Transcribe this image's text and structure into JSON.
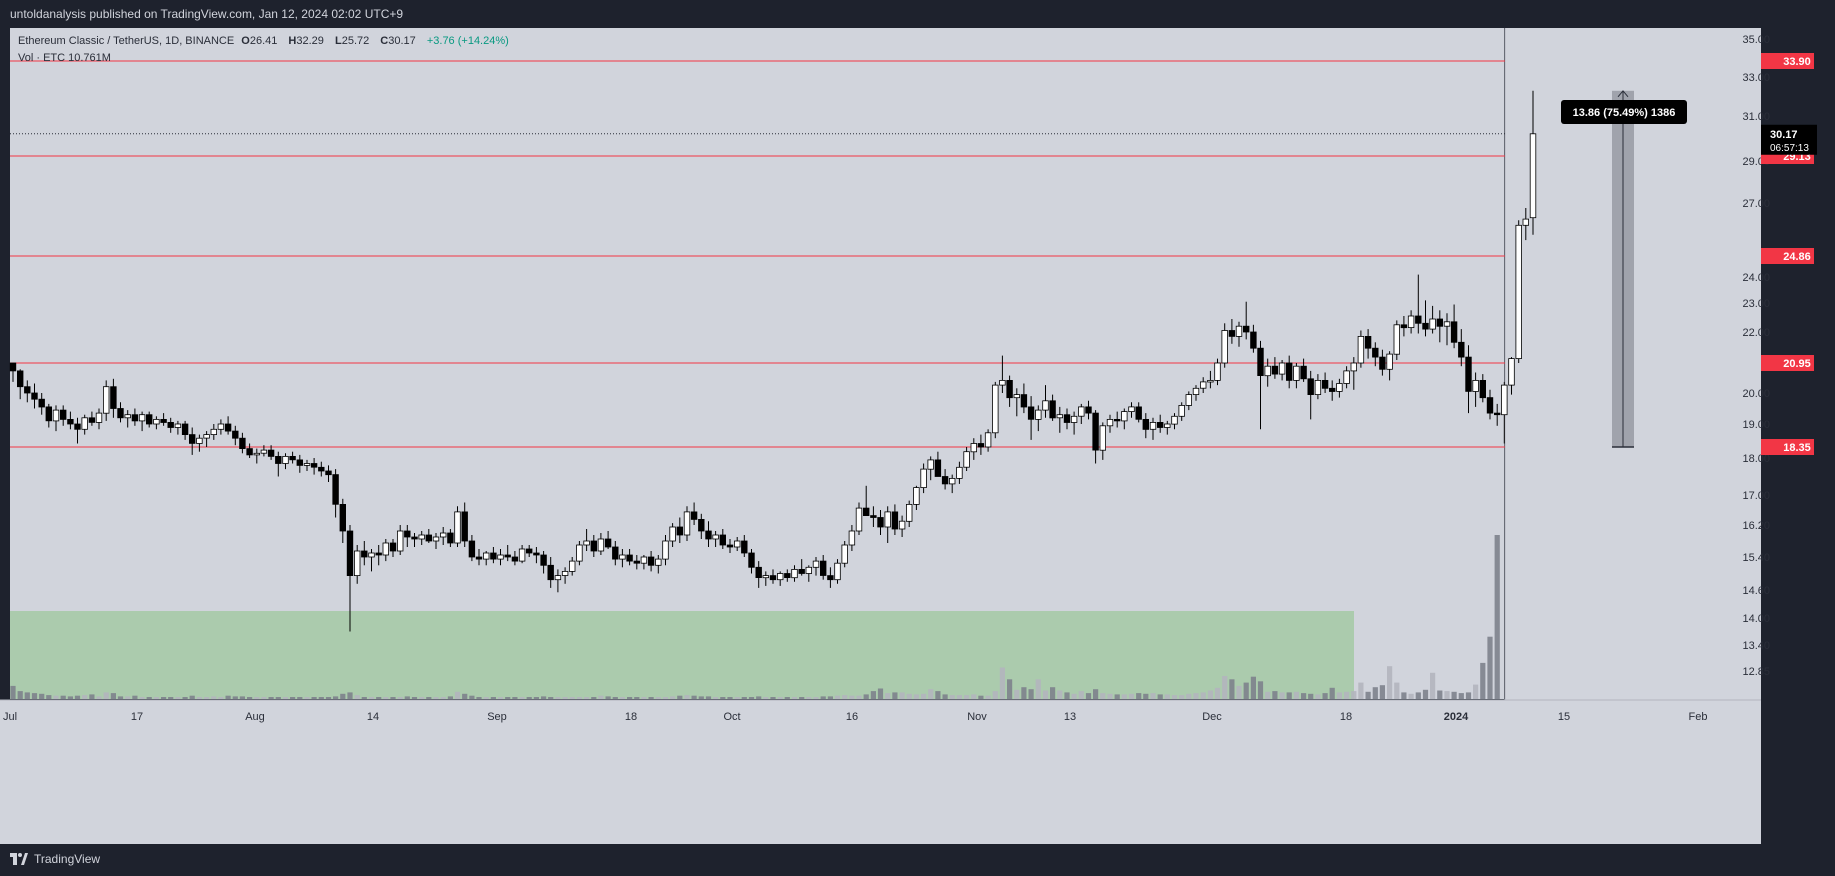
{
  "header": {
    "published": "untoldanalysis published on TradingView.com, Jan 12, 2024 02:02 UTC+9"
  },
  "legend": {
    "symbol": "Ethereum Classic / TetherUS, 1D, BINANCE",
    "open_label": "O",
    "open": "26.41",
    "high_label": "H",
    "high": "32.29",
    "low_label": "L",
    "low": "25.72",
    "close_label": "C",
    "close": "30.17",
    "change": "+3.76 (+14.24%)",
    "volume": "Vol · ETC  10.761M"
  },
  "footer": {
    "brand": "TradingView"
  },
  "colors": {
    "background": "#d1d4dc",
    "frame": "#1e222d",
    "level_line": "#f23645",
    "candle_up": "#ffffff",
    "candle_down": "#000000",
    "volume_zone": "#a5c9a5",
    "measure_box": "#8f939c"
  },
  "chart_data": {
    "type": "candlestick",
    "timeframe": "1D",
    "x_ticks": [
      "Jul",
      "17",
      "Aug",
      "14",
      "Sep",
      "18",
      "Oct",
      "16",
      "Nov",
      "13",
      "Dec",
      "18",
      "2024",
      "15",
      "Feb"
    ],
    "y_ticks": [
      "35.00",
      "33.00",
      "31.00",
      "29.00",
      "27.00",
      "24.00",
      "23.00",
      "22.00",
      "20.00",
      "19.00",
      "18.00",
      "17.00",
      "16.20",
      "15.40",
      "14.60",
      "14.00",
      "13.40",
      "12.85"
    ],
    "horizontal_levels": [
      "33.90",
      "29.13",
      "24.86",
      "20.95",
      "18.35"
    ],
    "last_price": "30.17",
    "countdown": "06:57:13",
    "measurement_label": "13.86 (75.49%) 1386",
    "price_range": [
      12.4,
      35.6
    ],
    "candles": [
      [
        20.95,
        20.95,
        20.35,
        20.7
      ],
      [
        20.7,
        20.75,
        19.8,
        20.2
      ],
      [
        20.2,
        20.4,
        19.7,
        20.0
      ],
      [
        20.0,
        20.3,
        19.5,
        19.8
      ],
      [
        19.8,
        20.0,
        19.3,
        19.55
      ],
      [
        19.55,
        19.65,
        18.9,
        19.1
      ],
      [
        19.1,
        19.6,
        18.8,
        19.45
      ],
      [
        19.45,
        19.6,
        18.95,
        19.15
      ],
      [
        19.15,
        19.4,
        18.85,
        19.0
      ],
      [
        19.0,
        19.2,
        18.45,
        18.85
      ],
      [
        18.85,
        19.3,
        18.7,
        19.2
      ],
      [
        19.2,
        19.4,
        18.95,
        19.05
      ],
      [
        19.05,
        19.5,
        18.85,
        19.35
      ],
      [
        19.35,
        20.4,
        19.1,
        20.2
      ],
      [
        20.2,
        20.45,
        19.2,
        19.5
      ],
      [
        19.5,
        19.7,
        19.05,
        19.2
      ],
      [
        19.2,
        19.45,
        18.9,
        19.3
      ],
      [
        19.3,
        19.5,
        18.95,
        19.1
      ],
      [
        19.1,
        19.4,
        18.8,
        19.3
      ],
      [
        19.3,
        19.4,
        18.9,
        19.0
      ],
      [
        19.0,
        19.25,
        18.85,
        19.15
      ],
      [
        19.15,
        19.35,
        18.95,
        19.05
      ],
      [
        19.05,
        19.2,
        18.75,
        18.9
      ],
      [
        18.9,
        19.1,
        18.7,
        19.0
      ],
      [
        19.0,
        19.1,
        18.55,
        18.7
      ],
      [
        18.7,
        18.9,
        18.1,
        18.45
      ],
      [
        18.45,
        18.7,
        18.2,
        18.6
      ],
      [
        18.6,
        18.8,
        18.35,
        18.7
      ],
      [
        18.7,
        19.0,
        18.55,
        18.85
      ],
      [
        18.85,
        19.15,
        18.7,
        19.0
      ],
      [
        19.0,
        19.25,
        18.7,
        18.8
      ],
      [
        18.8,
        18.95,
        18.4,
        18.6
      ],
      [
        18.6,
        18.75,
        18.15,
        18.3
      ],
      [
        18.3,
        18.45,
        18.0,
        18.1
      ],
      [
        18.1,
        18.3,
        17.85,
        18.15
      ],
      [
        18.15,
        18.4,
        18.05,
        18.25
      ],
      [
        18.25,
        18.4,
        17.95,
        18.05
      ],
      [
        18.05,
        18.2,
        17.5,
        17.85
      ],
      [
        17.85,
        18.15,
        17.7,
        18.05
      ],
      [
        18.05,
        18.2,
        17.85,
        17.95
      ],
      [
        17.95,
        18.1,
        17.6,
        17.8
      ],
      [
        17.8,
        17.95,
        17.65,
        17.85
      ],
      [
        17.85,
        18.0,
        17.55,
        17.75
      ],
      [
        17.75,
        17.9,
        17.5,
        17.65
      ],
      [
        17.65,
        17.8,
        17.35,
        17.55
      ],
      [
        17.55,
        17.7,
        16.4,
        16.75
      ],
      [
        16.75,
        16.9,
        15.75,
        16.05
      ],
      [
        16.05,
        16.2,
        13.7,
        14.95
      ],
      [
        14.95,
        15.7,
        14.75,
        15.55
      ],
      [
        15.55,
        15.8,
        15.2,
        15.4
      ],
      [
        15.4,
        15.6,
        15.05,
        15.5
      ],
      [
        15.5,
        15.7,
        15.2,
        15.45
      ],
      [
        15.45,
        15.85,
        15.3,
        15.75
      ],
      [
        15.75,
        15.85,
        15.4,
        15.55
      ],
      [
        15.55,
        16.2,
        15.45,
        16.05
      ],
      [
        16.05,
        16.2,
        15.65,
        15.9
      ],
      [
        15.9,
        16.0,
        15.65,
        15.85
      ],
      [
        15.85,
        16.05,
        15.7,
        15.95
      ],
      [
        15.95,
        16.1,
        15.75,
        15.8
      ],
      [
        15.8,
        16.0,
        15.6,
        15.9
      ],
      [
        15.9,
        16.15,
        15.7,
        16.0
      ],
      [
        16.0,
        16.1,
        15.65,
        15.75
      ],
      [
        15.75,
        16.7,
        15.65,
        16.55
      ],
      [
        16.55,
        16.8,
        15.65,
        15.8
      ],
      [
        15.8,
        15.95,
        15.3,
        15.4
      ],
      [
        15.4,
        15.6,
        15.2,
        15.35
      ],
      [
        15.35,
        15.55,
        15.2,
        15.5
      ],
      [
        15.5,
        15.65,
        15.25,
        15.35
      ],
      [
        15.35,
        15.6,
        15.2,
        15.45
      ],
      [
        15.45,
        15.7,
        15.3,
        15.4
      ],
      [
        15.4,
        15.55,
        15.2,
        15.3
      ],
      [
        15.3,
        15.7,
        15.25,
        15.6
      ],
      [
        15.6,
        15.7,
        15.4,
        15.5
      ],
      [
        15.5,
        15.65,
        15.25,
        15.45
      ],
      [
        15.45,
        15.55,
        15.0,
        15.2
      ],
      [
        15.2,
        15.4,
        14.65,
        14.85
      ],
      [
        14.85,
        15.1,
        14.55,
        14.95
      ],
      [
        14.95,
        15.15,
        14.75,
        15.05
      ],
      [
        15.05,
        15.4,
        14.95,
        15.3
      ],
      [
        15.3,
        15.8,
        15.2,
        15.7
      ],
      [
        15.7,
        16.1,
        15.55,
        15.8
      ],
      [
        15.8,
        15.95,
        15.4,
        15.55
      ],
      [
        15.55,
        16.0,
        15.45,
        15.85
      ],
      [
        15.85,
        16.05,
        15.6,
        15.65
      ],
      [
        15.65,
        15.8,
        15.2,
        15.35
      ],
      [
        15.35,
        15.6,
        15.15,
        15.45
      ],
      [
        15.45,
        15.6,
        15.2,
        15.3
      ],
      [
        15.3,
        15.45,
        15.1,
        15.25
      ],
      [
        15.25,
        15.45,
        15.1,
        15.4
      ],
      [
        15.4,
        15.55,
        15.05,
        15.2
      ],
      [
        15.2,
        15.45,
        15.0,
        15.35
      ],
      [
        15.35,
        15.95,
        15.2,
        15.8
      ],
      [
        15.8,
        16.25,
        15.65,
        16.15
      ],
      [
        16.15,
        16.4,
        15.75,
        15.95
      ],
      [
        15.95,
        16.7,
        15.8,
        16.55
      ],
      [
        16.55,
        16.8,
        16.2,
        16.35
      ],
      [
        16.35,
        16.5,
        15.85,
        16.05
      ],
      [
        16.05,
        16.3,
        15.65,
        15.85
      ],
      [
        15.85,
        16.05,
        15.65,
        15.95
      ],
      [
        15.95,
        16.1,
        15.6,
        15.7
      ],
      [
        15.7,
        15.85,
        15.5,
        15.65
      ],
      [
        15.65,
        15.9,
        15.55,
        15.8
      ],
      [
        15.8,
        15.95,
        15.4,
        15.5
      ],
      [
        15.5,
        15.6,
        15.0,
        15.15
      ],
      [
        15.15,
        15.3,
        14.65,
        14.9
      ],
      [
        14.9,
        15.05,
        14.7,
        14.95
      ],
      [
        14.95,
        15.1,
        14.75,
        14.85
      ],
      [
        14.85,
        15.05,
        14.7,
        15.0
      ],
      [
        15.0,
        15.1,
        14.8,
        14.9
      ],
      [
        14.9,
        15.2,
        14.8,
        15.1
      ],
      [
        15.1,
        15.35,
        14.95,
        15.0
      ],
      [
        15.0,
        15.2,
        14.8,
        15.15
      ],
      [
        15.15,
        15.4,
        14.95,
        15.3
      ],
      [
        15.3,
        15.45,
        14.85,
        14.95
      ],
      [
        14.95,
        15.15,
        14.65,
        14.85
      ],
      [
        14.85,
        15.35,
        14.75,
        15.25
      ],
      [
        15.25,
        15.8,
        15.15,
        15.7
      ],
      [
        15.7,
        16.2,
        15.55,
        16.05
      ],
      [
        16.05,
        16.8,
        15.95,
        16.65
      ],
      [
        16.65,
        17.25,
        16.45,
        16.45
      ],
      [
        16.45,
        16.7,
        16.15,
        16.4
      ],
      [
        16.4,
        16.6,
        15.95,
        16.15
      ],
      [
        16.15,
        16.7,
        15.75,
        16.55
      ],
      [
        16.55,
        16.75,
        15.95,
        16.1
      ],
      [
        16.1,
        16.45,
        15.9,
        16.3
      ],
      [
        16.3,
        16.85,
        16.15,
        16.75
      ],
      [
        16.75,
        17.25,
        16.6,
        17.2
      ],
      [
        17.2,
        17.85,
        17.05,
        17.7
      ],
      [
        17.7,
        18.05,
        17.4,
        17.95
      ],
      [
        17.95,
        18.2,
        17.6,
        17.5
      ],
      [
        17.5,
        17.7,
        17.15,
        17.3
      ],
      [
        17.3,
        17.55,
        17.05,
        17.45
      ],
      [
        17.45,
        17.9,
        17.3,
        17.75
      ],
      [
        17.75,
        18.35,
        17.65,
        18.2
      ],
      [
        18.2,
        18.6,
        17.95,
        18.45
      ],
      [
        18.45,
        18.7,
        18.1,
        18.35
      ],
      [
        18.35,
        18.85,
        18.2,
        18.75
      ],
      [
        18.75,
        20.35,
        18.6,
        20.25
      ],
      [
        20.25,
        21.2,
        20.0,
        20.4
      ],
      [
        20.4,
        20.55,
        19.55,
        19.85
      ],
      [
        19.85,
        20.15,
        19.25,
        19.95
      ],
      [
        19.95,
        20.3,
        19.35,
        19.55
      ],
      [
        19.55,
        19.9,
        18.55,
        19.15
      ],
      [
        19.15,
        19.6,
        18.8,
        19.45
      ],
      [
        19.45,
        20.25,
        19.2,
        19.75
      ],
      [
        19.75,
        19.95,
        19.1,
        19.2
      ],
      [
        19.2,
        19.55,
        18.75,
        19.3
      ],
      [
        19.3,
        19.5,
        18.85,
        19.05
      ],
      [
        19.05,
        19.4,
        18.7,
        19.25
      ],
      [
        19.25,
        19.65,
        19.0,
        19.55
      ],
      [
        19.55,
        19.75,
        19.15,
        19.35
      ],
      [
        19.35,
        19.45,
        17.85,
        18.25
      ],
      [
        18.25,
        19.05,
        17.95,
        18.95
      ],
      [
        18.95,
        19.3,
        18.75,
        19.15
      ],
      [
        19.15,
        19.4,
        18.9,
        19.1
      ],
      [
        19.1,
        19.5,
        18.85,
        19.4
      ],
      [
        19.4,
        19.7,
        19.2,
        19.55
      ],
      [
        19.55,
        19.7,
        19.05,
        19.15
      ],
      [
        19.15,
        19.35,
        18.6,
        18.85
      ],
      [
        18.85,
        19.2,
        18.55,
        19.05
      ],
      [
        19.05,
        19.3,
        18.75,
        18.9
      ],
      [
        18.9,
        19.1,
        18.7,
        19.0
      ],
      [
        19.0,
        19.35,
        18.85,
        19.25
      ],
      [
        19.25,
        19.7,
        19.1,
        19.6
      ],
      [
        19.6,
        20.05,
        19.45,
        19.95
      ],
      [
        19.95,
        20.25,
        19.75,
        20.15
      ],
      [
        20.15,
        20.5,
        20.0,
        20.35
      ],
      [
        20.35,
        20.7,
        20.15,
        20.4
      ],
      [
        20.4,
        21.1,
        20.25,
        20.95
      ],
      [
        20.95,
        22.3,
        20.8,
        22.05
      ],
      [
        22.05,
        22.45,
        21.6,
        21.85
      ],
      [
        21.85,
        22.35,
        21.5,
        22.2
      ],
      [
        22.2,
        23.05,
        21.75,
        22.0
      ],
      [
        22.0,
        22.25,
        21.3,
        21.45
      ],
      [
        21.45,
        21.7,
        18.85,
        20.55
      ],
      [
        20.55,
        21.1,
        20.2,
        20.85
      ],
      [
        20.85,
        21.15,
        20.45,
        20.6
      ],
      [
        20.6,
        21.05,
        20.4,
        20.95
      ],
      [
        20.95,
        21.2,
        20.15,
        20.4
      ],
      [
        20.4,
        20.95,
        20.15,
        20.85
      ],
      [
        20.85,
        21.1,
        20.35,
        20.45
      ],
      [
        20.45,
        20.7,
        19.15,
        19.95
      ],
      [
        19.95,
        20.6,
        19.8,
        20.4
      ],
      [
        20.4,
        20.65,
        20.0,
        20.15
      ],
      [
        20.15,
        20.4,
        19.75,
        20.05
      ],
      [
        20.05,
        20.45,
        19.85,
        20.3
      ],
      [
        20.3,
        20.85,
        20.15,
        20.7
      ],
      [
        20.7,
        21.15,
        20.1,
        20.95
      ],
      [
        20.95,
        22.05,
        20.8,
        21.85
      ],
      [
        21.85,
        22.1,
        21.1,
        21.45
      ],
      [
        21.45,
        21.65,
        20.85,
        21.15
      ],
      [
        21.15,
        21.4,
        20.55,
        20.75
      ],
      [
        20.75,
        21.35,
        20.4,
        21.25
      ],
      [
        21.25,
        22.4,
        21.05,
        22.25
      ],
      [
        22.25,
        22.55,
        21.85,
        22.15
      ],
      [
        22.15,
        22.75,
        21.95,
        22.55
      ],
      [
        22.55,
        24.1,
        21.95,
        22.3
      ],
      [
        22.3,
        23.1,
        21.85,
        22.1
      ],
      [
        22.1,
        22.9,
        21.95,
        22.45
      ],
      [
        22.45,
        22.75,
        21.65,
        22.2
      ],
      [
        22.2,
        22.65,
        21.55,
        22.35
      ],
      [
        22.35,
        22.95,
        21.45,
        21.65
      ],
      [
        21.65,
        22.1,
        20.85,
        21.15
      ],
      [
        21.15,
        21.55,
        19.35,
        20.05
      ],
      [
        20.05,
        20.65,
        19.55,
        20.4
      ],
      [
        20.4,
        20.6,
        19.7,
        19.85
      ],
      [
        19.85,
        20.1,
        19.15,
        19.35
      ],
      [
        19.35,
        19.65,
        18.95,
        19.3
      ],
      [
        19.3,
        20.35,
        18.45,
        20.25
      ],
      [
        20.25,
        21.15,
        19.95,
        21.1
      ],
      [
        21.1,
        26.3,
        20.95,
        26.1
      ],
      [
        26.1,
        26.8,
        25.5,
        26.35
      ],
      [
        26.41,
        32.29,
        25.72,
        30.17
      ]
    ],
    "volumes": [
      2.0,
      1.2,
      1.0,
      0.9,
      0.8,
      0.6,
      0.5,
      0.5,
      0.4,
      0.5,
      0.6,
      0.7,
      0.4,
      1.0,
      0.9,
      0.4,
      0.4,
      0.5,
      0.3,
      0.3,
      0.3,
      0.3,
      0.3,
      0.3,
      0.3,
      0.5,
      0.3,
      0.3,
      0.4,
      0.3,
      0.5,
      0.4,
      0.4,
      0.3,
      0.3,
      0.2,
      0.2,
      0.3,
      0.3,
      0.2,
      0.3,
      0.3,
      0.3,
      0.2,
      0.3,
      0.4,
      0.8,
      1.0,
      0.6,
      0.3,
      0.3,
      0.2,
      0.2,
      0.2,
      0.3,
      0.4,
      0.3,
      0.3,
      0.2,
      0.2,
      0.2,
      0.4,
      1.1,
      0.8,
      0.5,
      0.3,
      0.3,
      0.2,
      0.3,
      0.2,
      0.2,
      0.2,
      0.2,
      0.3,
      0.4,
      0.3,
      0.2,
      0.3,
      0.2,
      0.2,
      0.3,
      0.3,
      0.5,
      0.4,
      0.3,
      0.3,
      0.2,
      0.2,
      0.2,
      0.2,
      0.2,
      0.3,
      0.4,
      0.5,
      0.6,
      0.5,
      0.4,
      0.4,
      0.3,
      0.3,
      0.2,
      0.2,
      0.3,
      0.3,
      0.4,
      0.3,
      0.2,
      0.3,
      0.3,
      0.2,
      0.3,
      0.3,
      0.3,
      0.4,
      0.4,
      0.5,
      0.6,
      0.5,
      0.5,
      0.7,
      1.2,
      1.6,
      0.9,
      1.0,
      1.0,
      0.8,
      0.7,
      0.8,
      1.5,
      1.2,
      0.7,
      0.6,
      0.6,
      0.6,
      0.7,
      0.5,
      0.5,
      1.2,
      4.8,
      3.0,
      1.4,
      1.8,
      1.5,
      3.0,
      1.3,
      1.8,
      1.3,
      1.0,
      0.8,
      1.2,
      0.9,
      1.5,
      0.9,
      0.8,
      0.7,
      0.7,
      0.8,
      0.9,
      0.8,
      0.9,
      0.7,
      0.7,
      0.6,
      0.6,
      0.8,
      0.9,
      1.0,
      1.3,
      1.7,
      3.5,
      3.0,
      2.0,
      2.5,
      3.4,
      2.7,
      1.1,
      1.2,
      1.0,
      1.0,
      1.1,
      0.9,
      0.8,
      0.7,
      0.9,
      1.7,
      1.0,
      1.1,
      1.2,
      2.5,
      1.1,
      1.8,
      2.1,
      5.0,
      2.5,
      1.0,
      0.8,
      1.0,
      1.4,
      4.0,
      1.3,
      1.2,
      1.1,
      0.9,
      1.0,
      2.2,
      5.5,
      9.5,
      25.0
    ]
  }
}
